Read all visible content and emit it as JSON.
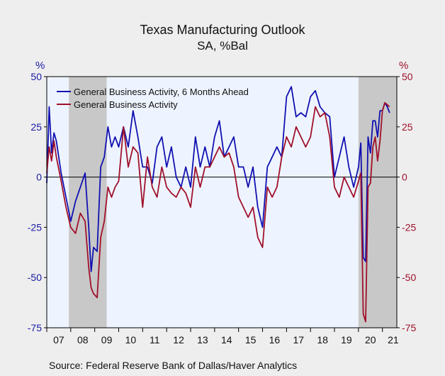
{
  "chart_data": {
    "type": "line",
    "title": "Texas Manufacturing Outlook",
    "subtitle": "SA, %Bal",
    "ylabel_left": "%",
    "ylabel_right": "%",
    "source": "Source:  Federal Reserve Bank of Dallas/Haver Analytics",
    "ylim": [
      -75,
      50
    ],
    "yticks": [
      50,
      25,
      0,
      -25,
      -50,
      -75
    ],
    "xlim": [
      2007.0,
      2021.6
    ],
    "xtick_labels": [
      "07",
      "08",
      "09",
      "10",
      "11",
      "12",
      "13",
      "14",
      "15",
      "16",
      "17",
      "18",
      "19",
      "20",
      "21"
    ],
    "recessions": [
      [
        2007.92,
        2009.5
      ],
      [
        2020.0,
        2021.6
      ]
    ],
    "zero_line": true,
    "legend_position": "top-left",
    "series": [
      {
        "name": "General Business Activity, 6 Months Ahead",
        "color": "#1010b0",
        "x": [
          2007.0,
          2007.1,
          2007.2,
          2007.3,
          2007.4,
          2007.6,
          2007.8,
          2008.0,
          2008.2,
          2008.4,
          2008.6,
          2008.75,
          2008.85,
          2008.95,
          2009.1,
          2009.25,
          2009.4,
          2009.55,
          2009.7,
          2009.85,
          2010.0,
          2010.2,
          2010.4,
          2010.6,
          2010.8,
          2011.0,
          2011.2,
          2011.4,
          2011.6,
          2011.8,
          2012.0,
          2012.2,
          2012.4,
          2012.6,
          2012.8,
          2013.0,
          2013.2,
          2013.4,
          2013.6,
          2013.8,
          2014.0,
          2014.2,
          2014.4,
          2014.6,
          2014.8,
          2015.0,
          2015.2,
          2015.4,
          2015.6,
          2015.8,
          2016.0,
          2016.2,
          2016.4,
          2016.6,
          2016.8,
          2017.0,
          2017.2,
          2017.4,
          2017.6,
          2017.8,
          2018.0,
          2018.2,
          2018.4,
          2018.6,
          2018.8,
          2019.0,
          2019.2,
          2019.4,
          2019.6,
          2019.8,
          2020.0,
          2020.1,
          2020.2,
          2020.3,
          2020.4,
          2020.5,
          2020.6,
          2020.7,
          2020.8,
          2020.9,
          2021.0,
          2021.1,
          2021.2,
          2021.3
        ],
        "values": [
          -3,
          35,
          12,
          22,
          18,
          2,
          -10,
          -22,
          -12,
          -5,
          2,
          -25,
          -47,
          -35,
          -37,
          5,
          10,
          25,
          15,
          20,
          15,
          25,
          15,
          33,
          20,
          5,
          5,
          -3,
          15,
          20,
          5,
          15,
          0,
          -5,
          5,
          -5,
          20,
          5,
          15,
          5,
          20,
          28,
          10,
          15,
          20,
          5,
          5,
          -5,
          5,
          -15,
          -25,
          5,
          10,
          15,
          10,
          40,
          45,
          30,
          32,
          30,
          40,
          43,
          35,
          32,
          30,
          0,
          10,
          20,
          5,
          -5,
          5,
          17,
          -40,
          -42,
          20,
          12,
          28,
          28,
          20,
          33,
          33,
          37,
          35,
          32
        ]
      },
      {
        "name": "General Business Activity",
        "color": "#a0102a",
        "x": [
          2007.0,
          2007.1,
          2007.2,
          2007.3,
          2007.4,
          2007.6,
          2007.8,
          2008.0,
          2008.2,
          2008.4,
          2008.6,
          2008.75,
          2008.85,
          2008.95,
          2009.1,
          2009.25,
          2009.4,
          2009.55,
          2009.7,
          2009.85,
          2010.0,
          2010.2,
          2010.4,
          2010.6,
          2010.8,
          2011.0,
          2011.2,
          2011.4,
          2011.6,
          2011.8,
          2012.0,
          2012.2,
          2012.4,
          2012.6,
          2012.8,
          2013.0,
          2013.2,
          2013.4,
          2013.6,
          2013.8,
          2014.0,
          2014.2,
          2014.4,
          2014.6,
          2014.8,
          2015.0,
          2015.2,
          2015.4,
          2015.6,
          2015.8,
          2016.0,
          2016.2,
          2016.4,
          2016.6,
          2016.8,
          2017.0,
          2017.2,
          2017.4,
          2017.6,
          2017.8,
          2018.0,
          2018.2,
          2018.4,
          2018.6,
          2018.8,
          2019.0,
          2019.2,
          2019.4,
          2019.6,
          2019.8,
          2020.0,
          2020.1,
          2020.2,
          2020.3,
          2020.4,
          2020.5,
          2020.6,
          2020.7,
          2020.8,
          2020.9,
          2021.0,
          2021.1,
          2021.2,
          2021.3
        ],
        "values": [
          2,
          15,
          8,
          18,
          10,
          -2,
          -15,
          -25,
          -28,
          -18,
          -22,
          -45,
          -55,
          -58,
          -60,
          -30,
          -22,
          -5,
          -10,
          -5,
          -2,
          25,
          5,
          15,
          12,
          -15,
          10,
          -5,
          -10,
          5,
          -5,
          -8,
          -10,
          -5,
          -8,
          -15,
          5,
          -5,
          5,
          5,
          10,
          15,
          10,
          12,
          5,
          -10,
          -15,
          -20,
          -15,
          -30,
          -35,
          -5,
          -10,
          -5,
          10,
          20,
          15,
          25,
          20,
          15,
          20,
          35,
          30,
          32,
          20,
          -5,
          -10,
          0,
          -5,
          -10,
          -2,
          2,
          -68,
          -72,
          -5,
          -3,
          15,
          20,
          8,
          18,
          33,
          37,
          36,
          35
        ]
      }
    ]
  }
}
